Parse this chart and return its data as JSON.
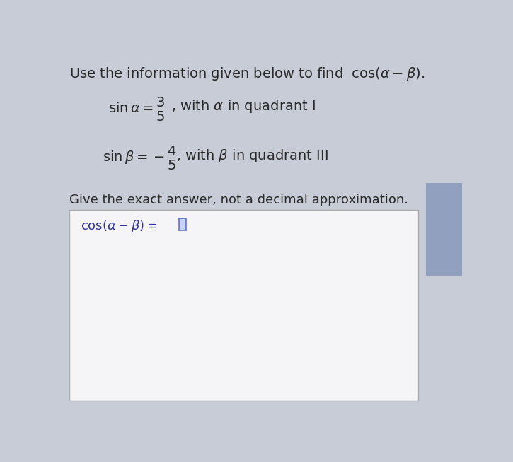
{
  "title_text": "Use the information given below to find  $\\cos(\\alpha-\\beta)$.",
  "line1_part1": "$\\sin\\alpha = \\dfrac{3}{5}$",
  "line1_part2": ", with $\\alpha$ in quadrant I",
  "line2_part1": "$\\sin\\beta = -\\dfrac{4}{5}$",
  "line2_part2": ", with $\\beta$ in quadrant III",
  "line3": "Give the exact answer, not a decimal approximation.",
  "answer_label": "$\\cos(\\alpha - \\beta) = $",
  "bg_color": "#c8ccd6",
  "box_inner_bg": "#f5f5f8",
  "text_color": "#2a2a2a",
  "answer_color": "#333399",
  "cursor_color": "#3344bb",
  "right_tab_color": "#8899bb",
  "title_fontsize": 14,
  "body_fontsize": 14,
  "answer_fontsize": 13
}
